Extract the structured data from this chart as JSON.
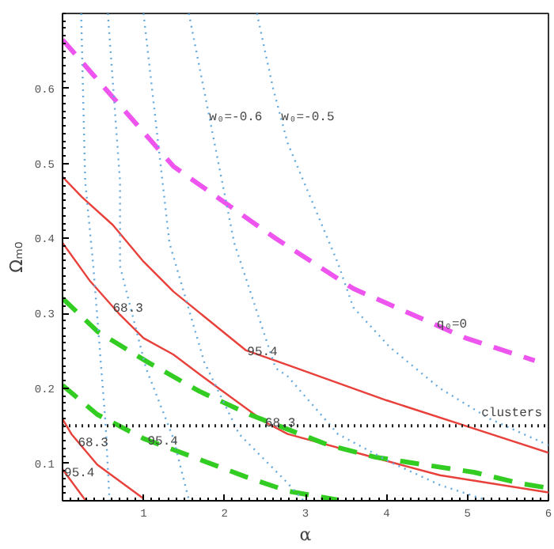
{
  "chart_data": {
    "type": "line",
    "xlabel": "α",
    "ylabel": "Ωₘ₀",
    "xlim": [
      0,
      6
    ],
    "ylim": [
      0.05,
      0.7
    ],
    "xticks": [
      1,
      2,
      3,
      4,
      5,
      6
    ],
    "yticks": [
      0.1,
      0.2,
      0.3,
      0.4,
      0.5,
      0.6
    ],
    "grid": false,
    "marker": "none",
    "series": [
      {
        "color": "#e8403a",
        "line_style": "solid",
        "x": [
          0,
          0.24,
          0.62,
          1.0,
          1.37,
          2.26,
          2.78,
          4.0,
          5.0,
          6.0
        ],
        "values": [
          0.482,
          0.455,
          0.418,
          0.369,
          0.329,
          0.251,
          0.231,
          0.184,
          0.149,
          0.114
        ]
      },
      {
        "color": "#e8403a",
        "line_style": "solid",
        "x": [
          0,
          0.34,
          0.71,
          1.0,
          1.37,
          1.75,
          2.5,
          2.78,
          4.04,
          4.66,
          6.0
        ],
        "values": [
          0.394,
          0.343,
          0.298,
          0.267,
          0.245,
          0.214,
          0.155,
          0.139,
          0.102,
          0.084,
          0.061
        ]
      },
      {
        "color": "#e8403a",
        "line_style": "solid",
        "x": [
          0,
          0.11,
          0.43,
          1.0
        ],
        "values": [
          0.159,
          0.139,
          0.098,
          0.053
        ]
      },
      {
        "color": "#e8403a",
        "line_style": "solid",
        "x": [
          0,
          0.28
        ],
        "values": [
          0.092,
          0.051
        ]
      },
      {
        "color": "#33cc22",
        "line_style": "dashed",
        "x": [
          0,
          0.43,
          1.05,
          1.69,
          2.31,
          3.29,
          3.87,
          4.47,
          5.08,
          5.66,
          6.0
        ],
        "values": [
          0.32,
          0.276,
          0.235,
          0.196,
          0.165,
          0.124,
          0.108,
          0.098,
          0.088,
          0.073,
          0.067
        ]
      },
      {
        "color": "#33cc22",
        "line_style": "dashed",
        "x": [
          0,
          0.43,
          1.0,
          1.62,
          2.26,
          2.78,
          3.4
        ],
        "values": [
          0.204,
          0.165,
          0.133,
          0.108,
          0.082,
          0.063,
          0.051
        ]
      },
      {
        "color": "#ee55ee",
        "line_style": "dashed",
        "x": [
          0,
          0.38,
          1.37,
          2.63,
          3.59,
          4.98,
          5.83
        ],
        "values": [
          0.665,
          0.618,
          0.496,
          0.4,
          0.333,
          0.267,
          0.237
        ]
      },
      {
        "color": "#66aadd",
        "line_style": "dotted",
        "x": [
          0.23,
          0.28,
          0.38,
          0.53,
          0.58
        ],
        "values": [
          0.7,
          0.476,
          0.363,
          0.155,
          0.051
        ]
      },
      {
        "color": "#66aadd",
        "line_style": "dotted",
        "x": [
          0.56,
          0.71,
          0.71,
          1.03,
          1.37,
          1.56
        ],
        "values": [
          0.7,
          0.476,
          0.363,
          0.227,
          0.133,
          0.051
        ]
      },
      {
        "color": "#66aadd",
        "line_style": "dotted",
        "x": [
          1.0,
          1.32,
          1.75,
          2.18,
          2.74,
          2.97
        ],
        "values": [
          0.7,
          0.394,
          0.235,
          0.139,
          0.078,
          0.051
        ]
      },
      {
        "color": "#66aadd",
        "line_style": "dotted",
        "x": [
          1.56,
          2.12,
          2.63,
          2.78,
          3.4,
          4.04,
          4.66,
          5.23
        ],
        "values": [
          0.7,
          0.394,
          0.227,
          0.216,
          0.139,
          0.102,
          0.071,
          0.051
        ]
      },
      {
        "color": "#66aadd",
        "line_style": "dotted",
        "x": [
          2.4,
          2.6,
          2.78,
          3.4,
          3.59,
          4.04,
          4.66,
          5.28,
          6.0
        ],
        "values": [
          0.7,
          0.6,
          0.527,
          0.367,
          0.308,
          0.255,
          0.2,
          0.159,
          0.124
        ]
      }
    ],
    "ref_lines": [
      {
        "axis": "y",
        "value": 0.15,
        "label": "clusters",
        "color": "#222222",
        "line_style": "dotted"
      }
    ],
    "annotations": [
      {
        "text": "68.3",
        "x": 0.62,
        "y": 0.309
      },
      {
        "text": "95.4",
        "x": 2.28,
        "y": 0.25
      },
      {
        "text": "68.3",
        "x": 2.5,
        "y": 0.155
      },
      {
        "text": "68.3",
        "x": 0.19,
        "y": 0.129
      },
      {
        "text": "95.4",
        "x": 1.05,
        "y": 0.131
      },
      {
        "text": "95.4",
        "x": 0.02,
        "y": 0.089
      },
      {
        "text": "w₀=-0.6",
        "x": 1.81,
        "y": 0.561
      },
      {
        "text": "w₀=-0.5",
        "x": 2.7,
        "y": 0.561
      },
      {
        "text": "q₀=0",
        "x": 4.62,
        "y": 0.284
      }
    ]
  }
}
